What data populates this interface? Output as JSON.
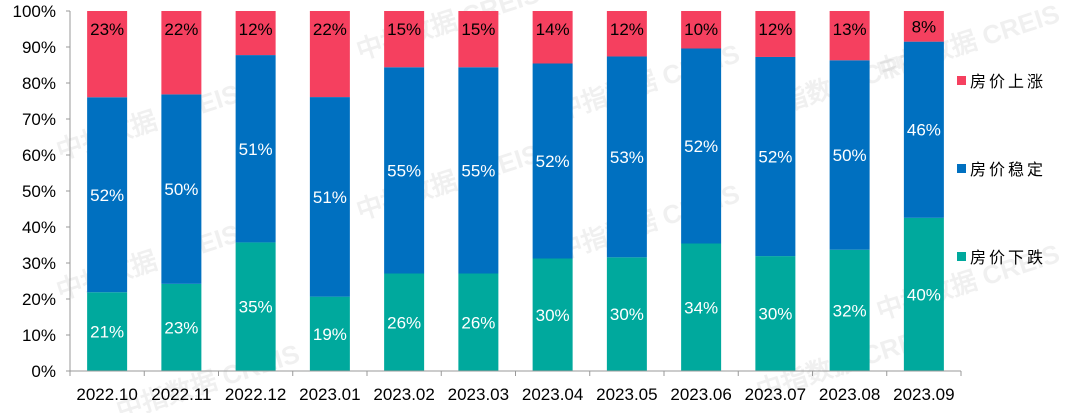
{
  "chart_data": {
    "type": "bar",
    "stacked": true,
    "normalized_100_percent": true,
    "categories": [
      "2022.10",
      "2022.11",
      "2022.12",
      "2023.01",
      "2023.02",
      "2023.03",
      "2023.04",
      "2023.05",
      "2023.06",
      "2023.07",
      "2023.08",
      "2023.09"
    ],
    "series": [
      {
        "name": "房价下跌",
        "color": "#00A99D",
        "label_color": "#FFFFFF",
        "values": [
          21,
          23,
          35,
          19,
          26,
          26,
          30,
          30,
          34,
          30,
          32,
          40
        ]
      },
      {
        "name": "房价稳定",
        "color": "#0070C0",
        "label_color": "#FFFFFF",
        "values": [
          52,
          50,
          51,
          51,
          55,
          55,
          52,
          53,
          52,
          52,
          50,
          46
        ]
      },
      {
        "name": "房价上涨",
        "color": "#F5405F",
        "label_color": "#000000",
        "values": [
          23,
          22,
          12,
          22,
          15,
          15,
          14,
          12,
          10,
          12,
          13,
          8
        ]
      }
    ],
    "yticks": [
      "0%",
      "10%",
      "20%",
      "30%",
      "40%",
      "50%",
      "60%",
      "70%",
      "80%",
      "90%",
      "100%"
    ],
    "ylim": [
      0,
      100
    ],
    "xlabel": "",
    "ylabel": "",
    "grid": false,
    "legend_position": "right",
    "legend_order": [
      "房价上涨",
      "房价稳定",
      "房价下跌"
    ],
    "watermark": "中指数据 CREIS"
  }
}
